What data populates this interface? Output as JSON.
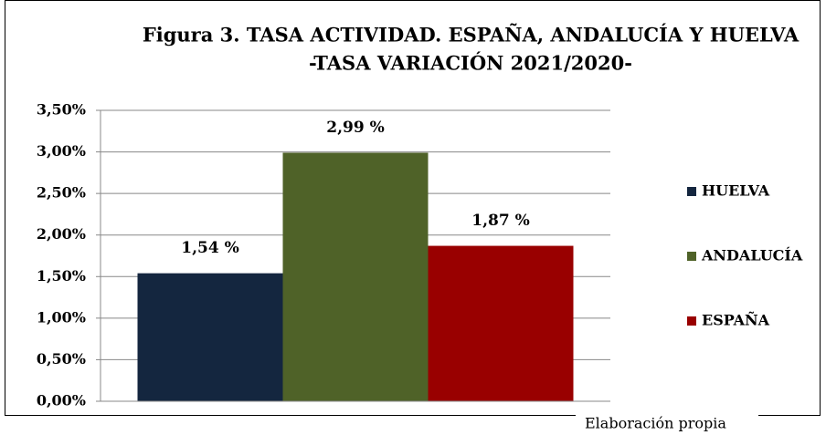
{
  "chart_data": {
    "type": "bar",
    "title": [
      "Figura 3. TASA ACTIVIDAD. ESPAÑA, ANDALUCÍA Y HUELVA",
      "-TASA VARIACIÓN 2021/2020-"
    ],
    "categories": [
      null
    ],
    "series": [
      {
        "name": "HUELVA",
        "color": "#14263f",
        "values": [
          1.54
        ],
        "value_labels": [
          "1,54 %"
        ]
      },
      {
        "name": "ANDALUCÍA",
        "color": "#4f6228",
        "values": [
          2.99
        ],
        "value_labels": [
          "2,99 %"
        ]
      },
      {
        "name": "ESPAÑA",
        "color": "#990000",
        "values": [
          1.87
        ],
        "value_labels": [
          "1,87 %"
        ]
      }
    ],
    "ylim": [
      0,
      3.5
    ],
    "yticks": [
      {
        "value": 0,
        "label": "0,00%"
      },
      {
        "value": 0.5,
        "label": "0,50%"
      },
      {
        "value": 1,
        "label": "1,00%"
      },
      {
        "value": 1.5,
        "label": "1,50%"
      },
      {
        "value": 2,
        "label": "2,00%"
      },
      {
        "value": 2.5,
        "label": "2,50%"
      },
      {
        "value": 3,
        "label": "3,00%"
      },
      {
        "value": 3.5,
        "label": "3,50%"
      }
    ],
    "grid": true,
    "legend": "right",
    "note": "Elaboración propia"
  }
}
